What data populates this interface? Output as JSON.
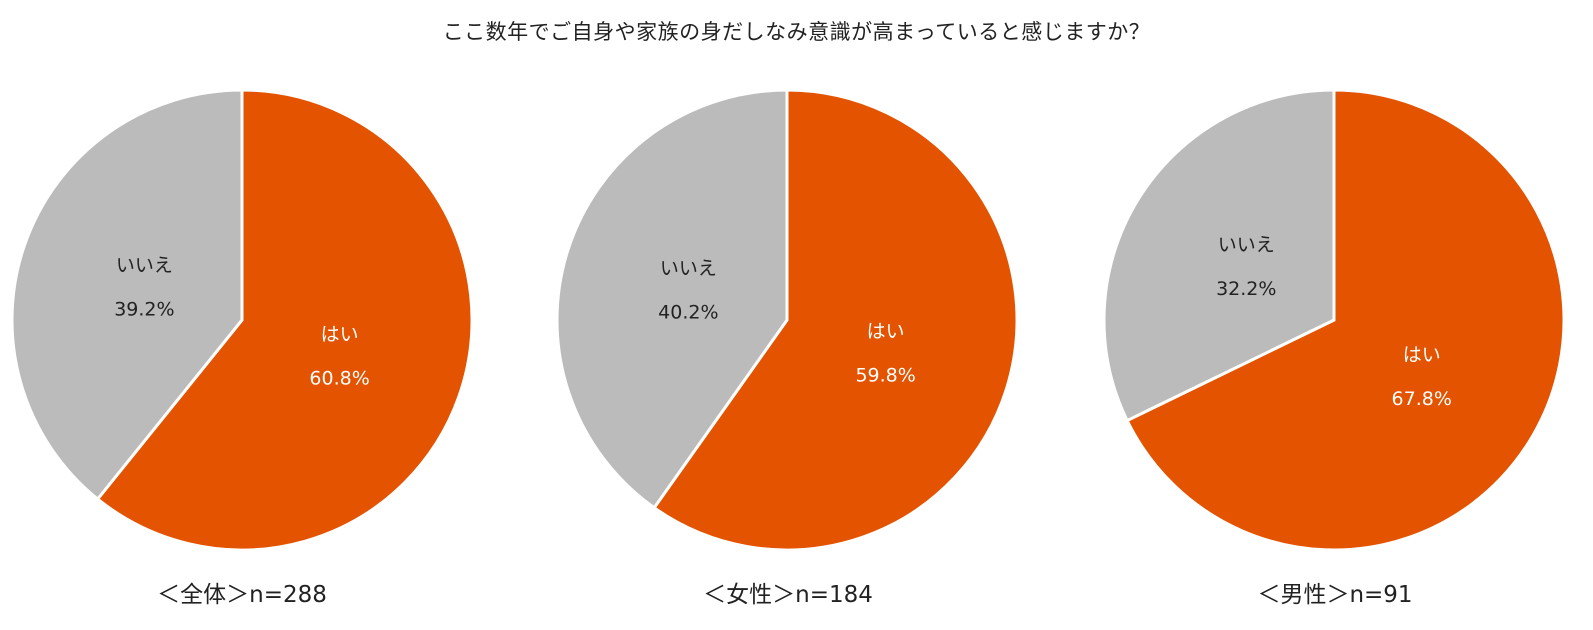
{
  "chart_data": [
    {
      "type": "pie",
      "title": "ここ数年でご自身や家族の身だしなみ意識が高まっていると感じますか？",
      "caption": "＜全体＞n=288",
      "categories": [
        "はい",
        "いいえ"
      ],
      "values": [
        60.8,
        39.2
      ],
      "value_labels": [
        "60.8%",
        "39.2%"
      ],
      "colors": [
        "#e35300",
        "#bbbbbb"
      ]
    },
    {
      "type": "pie",
      "caption": "＜女性＞n=184",
      "categories": [
        "はい",
        "いいえ"
      ],
      "values": [
        59.8,
        40.2
      ],
      "value_labels": [
        "59.8%",
        "40.2%"
      ],
      "colors": [
        "#e35300",
        "#bbbbbb"
      ]
    },
    {
      "type": "pie",
      "caption": "＜男性＞n=91",
      "categories": [
        "はい",
        "いいえ"
      ],
      "values": [
        67.8,
        32.2
      ],
      "value_labels": [
        "67.8%",
        "32.2%"
      ],
      "colors": [
        "#e35300",
        "#bbbbbb"
      ]
    }
  ]
}
